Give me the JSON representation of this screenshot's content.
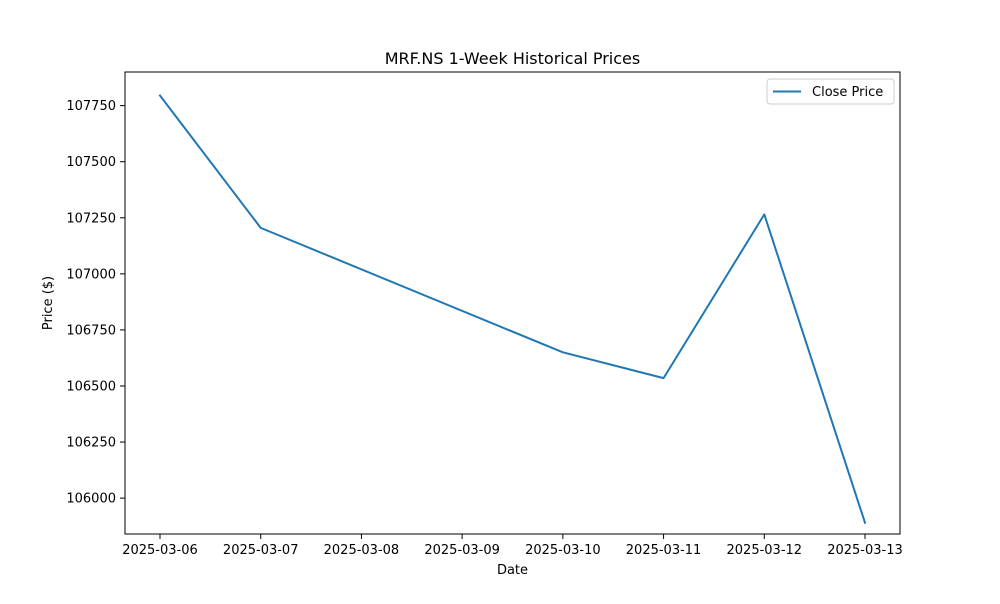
{
  "chart_data": {
    "type": "line",
    "title": "MRF.NS 1-Week Historical Prices",
    "xlabel": "Date",
    "ylabel": "Price ($)",
    "x": [
      "2025-03-06",
      "2025-03-07",
      "2025-03-08",
      "2025-03-09",
      "2025-03-10",
      "2025-03-11",
      "2025-03-12",
      "2025-03-13"
    ],
    "x_ticks": [
      "2025-03-06",
      "2025-03-07",
      "2025-03-08",
      "2025-03-09",
      "2025-03-10",
      "2025-03-11",
      "2025-03-12",
      "2025-03-13"
    ],
    "series": [
      {
        "name": "Close Price",
        "color": "#1f77b4",
        "points": [
          {
            "x": "2025-03-06",
            "y": 107795
          },
          {
            "x": "2025-03-07",
            "y": 107205
          },
          {
            "x": "2025-03-10",
            "y": 106650
          },
          {
            "x": "2025-03-11",
            "y": 106535
          },
          {
            "x": "2025-03-12",
            "y": 107265
          },
          {
            "x": "2025-03-13",
            "y": 105890
          }
        ]
      }
    ],
    "y_ticks": [
      106000,
      106250,
      106500,
      106750,
      107000,
      107250,
      107500,
      107750
    ],
    "xlim": [
      "2025-03-06",
      "2025-03-13"
    ],
    "ylim": [
      105840,
      107900
    ],
    "grid": false,
    "legend": "top-right"
  }
}
